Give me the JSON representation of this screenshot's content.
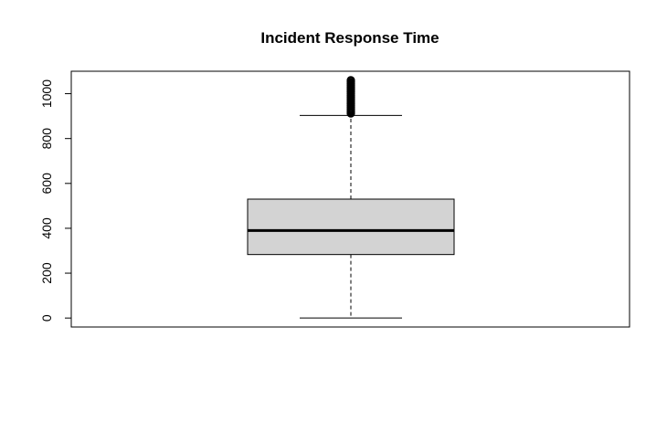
{
  "chart_data": {
    "type": "boxplot",
    "title": "Incident Response Time",
    "xlabel": "",
    "ylabel": "",
    "ylim": [
      -40,
      1100
    ],
    "yticks": [
      0,
      200,
      400,
      600,
      800,
      1000
    ],
    "grid": false,
    "legend": "none",
    "series": [
      {
        "min": 0,
        "q1": 283,
        "median": 390,
        "q3": 530,
        "max": 903,
        "outliers": [
          912,
          918,
          925,
          932,
          940,
          948,
          955,
          962,
          970,
          978,
          985,
          992,
          1000,
          1008,
          1015,
          1022,
          1030,
          1038,
          1045,
          1052,
          1060
        ]
      }
    ],
    "colors": {
      "box_fill": "#d3d3d3",
      "stroke": "#000000",
      "background": "#ffffff"
    }
  }
}
